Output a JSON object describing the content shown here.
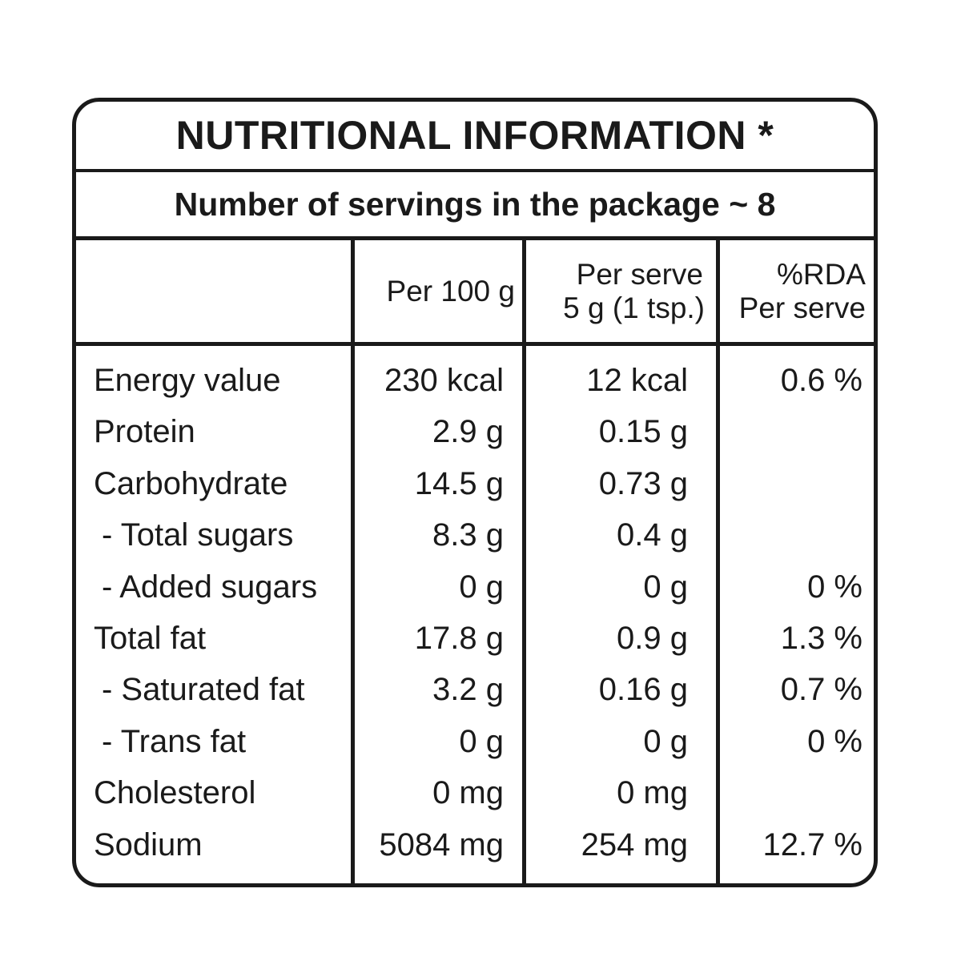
{
  "title": "NUTRITIONAL INFORMATION *",
  "servings": "Number of servings in the package ~ 8",
  "headers": {
    "per100": "Per 100 g",
    "serve_line1": "Per serve",
    "serve_line2": "5 g (1 tsp.)",
    "rda_line1": "%RDA",
    "rda_line2": "Per serve"
  },
  "rows": [
    {
      "name": "Energy value",
      "per100": "230 kcal",
      "serve": "12 kcal",
      "rda": "0.6 %"
    },
    {
      "name": "Protein",
      "per100": "2.9 g",
      "serve": "0.15 g",
      "rda": ""
    },
    {
      "name": "Carbohydrate",
      "per100": "14.5 g",
      "serve": "0.73 g",
      "rda": ""
    },
    {
      "name": " - Total sugars",
      "per100": "8.3 g",
      "serve": "0.4 g",
      "rda": ""
    },
    {
      "name": " - Added sugars",
      "per100": "0 g",
      "serve": "0 g",
      "rda": "0 %"
    },
    {
      "name": "Total fat",
      "per100": "17.8 g",
      "serve": "0.9 g",
      "rda": "1.3 %"
    },
    {
      "name": " - Saturated fat",
      "per100": "3.2 g",
      "serve": "0.16 g",
      "rda": "0.7 %"
    },
    {
      "name": " - Trans fat",
      "per100": "0 g",
      "serve": "0 g",
      "rda": "0 %"
    },
    {
      "name": "Cholesterol",
      "per100": "0 mg",
      "serve": "0 mg",
      "rda": ""
    },
    {
      "name": "Sodium",
      "per100": "5084 mg",
      "serve": "254 mg",
      "rda": "12.7 %"
    }
  ]
}
